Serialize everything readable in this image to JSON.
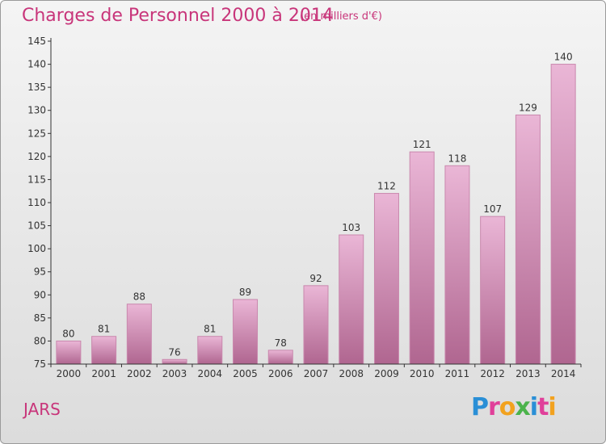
{
  "header": {
    "title": "Charges de Personnel 2000 à 2014",
    "unit": "(en milliers d'€)"
  },
  "footer": {
    "place": "JARS",
    "logo": "Proxiti"
  },
  "colors": {
    "title": "#c8357a",
    "bar_top": "#eab6d6",
    "bar_bottom": "#b06690",
    "axis": "#333333"
  },
  "chart_data": {
    "type": "bar",
    "title": "Charges de Personnel 2000 à 2014",
    "subtitle": "(en milliers d'€)",
    "categories": [
      "2000",
      "2001",
      "2002",
      "2003",
      "2004",
      "2005",
      "2006",
      "2007",
      "2008",
      "2009",
      "2010",
      "2011",
      "2012",
      "2013",
      "2014"
    ],
    "values": [
      80,
      81,
      88,
      76,
      81,
      89,
      78,
      92,
      103,
      112,
      121,
      118,
      107,
      129,
      140
    ],
    "ylim": [
      75,
      145
    ],
    "yticks": [
      75,
      80,
      85,
      90,
      95,
      100,
      105,
      110,
      115,
      120,
      125,
      130,
      135,
      140,
      145
    ],
    "grid": false,
    "legend": "none"
  }
}
